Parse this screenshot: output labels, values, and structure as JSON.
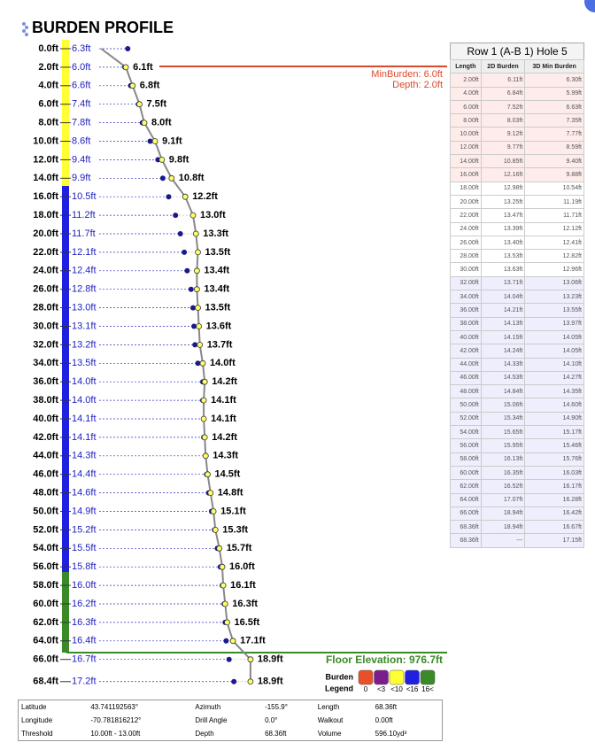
{
  "header": {
    "title": "BURDEN PROFILE"
  },
  "profile": {
    "depths": [
      0,
      2,
      4,
      6,
      8,
      10,
      12,
      14,
      16,
      18,
      20,
      22,
      24,
      26,
      28,
      30,
      32,
      34,
      36,
      38,
      40,
      42,
      44,
      46,
      48,
      50,
      52,
      54,
      56,
      58,
      60,
      62,
      64,
      66,
      68.4
    ],
    "depth_labels": [
      "0.0ft",
      "2.0ft",
      "4.0ft",
      "6.0ft",
      "8.0ft",
      "10.0ft",
      "12.0ft",
      "14.0ft",
      "16.0ft",
      "18.0ft",
      "20.0ft",
      "22.0ft",
      "24.0ft",
      "26.0ft",
      "28.0ft",
      "30.0ft",
      "32.0ft",
      "34.0ft",
      "36.0ft",
      "38.0ft",
      "40.0ft",
      "42.0ft",
      "44.0ft",
      "46.0ft",
      "48.0ft",
      "50.0ft",
      "52.0ft",
      "54.0ft",
      "56.0ft",
      "58.0ft",
      "60.0ft",
      "62.0ft",
      "64.0ft",
      "66.0ft",
      "68.4ft"
    ],
    "burden_3d": [
      6.3,
      6.0,
      6.6,
      7.4,
      7.8,
      8.6,
      9.4,
      9.9,
      10.5,
      11.2,
      11.7,
      12.1,
      12.4,
      12.8,
      13.0,
      13.1,
      13.2,
      13.5,
      14.0,
      14.0,
      14.1,
      14.1,
      14.3,
      14.4,
      14.6,
      14.9,
      15.2,
      15.5,
      15.8,
      16.0,
      16.2,
      16.3,
      16.4,
      16.7,
      17.2
    ],
    "burden_3d_labels": [
      "6.3ft",
      "6.0ft",
      "6.6ft",
      "7.4ft",
      "7.8ft",
      "8.6ft",
      "9.4ft",
      "9.9ft",
      "10.5ft",
      "11.2ft",
      "11.7ft",
      "12.1ft",
      "12.4ft",
      "12.8ft",
      "13.0ft",
      "13.1ft",
      "13.2ft",
      "13.5ft",
      "14.0ft",
      "14.0ft",
      "14.1ft",
      "14.1ft",
      "14.3ft",
      "14.4ft",
      "14.6ft",
      "14.9ft",
      "15.2ft",
      "15.5ft",
      "15.8ft",
      "16.0ft",
      "16.2ft",
      "16.3ft",
      "16.4ft",
      "16.7ft",
      "17.2ft"
    ],
    "burden_2d": [
      null,
      6.1,
      6.8,
      7.5,
      8.0,
      9.1,
      9.8,
      10.8,
      12.2,
      13.0,
      13.3,
      13.5,
      13.4,
      13.4,
      13.5,
      13.6,
      13.7,
      14.0,
      14.2,
      14.1,
      14.1,
      14.2,
      14.3,
      14.5,
      14.8,
      15.1,
      15.3,
      15.7,
      16.0,
      16.1,
      16.3,
      16.5,
      17.1,
      18.9,
      18.9
    ],
    "burden_2d_labels": [
      null,
      "6.1ft",
      "6.8ft",
      "7.5ft",
      "8.0ft",
      "9.1ft",
      "9.8ft",
      "10.8ft",
      "12.2ft",
      "13.0ft",
      "13.3ft",
      "13.5ft",
      "13.4ft",
      "13.4ft",
      "13.5ft",
      "13.6ft",
      "13.7ft",
      "14.0ft",
      "14.2ft",
      "14.1ft",
      "14.1ft",
      "14.2ft",
      "14.3ft",
      "14.5ft",
      "14.8ft",
      "15.1ft",
      "15.3ft",
      "15.7ft",
      "16.0ft",
      "16.1ft",
      "16.3ft",
      "16.5ft",
      "17.1ft",
      "18.9ft",
      "18.9ft"
    ],
    "min_burden": "MinBurden: 6.0ft",
    "min_depth": "Depth: 2.0ft",
    "floor": "Floor Elevation: 976.7ft"
  },
  "legend": {
    "title": [
      "Burden",
      "Legend"
    ],
    "items": [
      {
        "label": "0",
        "color": "#e8502a"
      },
      {
        "label": "<3",
        "color": "#7b1e8c"
      },
      {
        "label": "<10",
        "color": "#ffff33"
      },
      {
        "label": "<16",
        "color": "#2020e0"
      },
      {
        "label": "16<",
        "color": "#3a8a2a"
      }
    ]
  },
  "table": {
    "title": "Row 1 (A-B 1) Hole 5",
    "headers": [
      "Length",
      "2D Burden",
      "3D Min Burden"
    ],
    "rows": [
      [
        "2.00ft",
        "6.11ft",
        "6.30ft"
      ],
      [
        "4.00ft",
        "6.84ft",
        "5.99ft"
      ],
      [
        "6.00ft",
        "7.52ft",
        "6.63ft"
      ],
      [
        "8.00ft",
        "8.03ft",
        "7.35ft"
      ],
      [
        "10.00ft",
        "9.12ft",
        "7.77ft"
      ],
      [
        "12.00ft",
        "9.77ft",
        "8.59ft"
      ],
      [
        "14.00ft",
        "10.85ft",
        "9.40ft"
      ],
      [
        "16.00ft",
        "12.16ft",
        "9.88ft"
      ],
      [
        "18.00ft",
        "12.98ft",
        "10.54ft"
      ],
      [
        "20.00ft",
        "13.25ft",
        "11.19ft"
      ],
      [
        "22.00ft",
        "13.47ft",
        "11.71ft"
      ],
      [
        "24.00ft",
        "13.39ft",
        "12.12ft"
      ],
      [
        "26.00ft",
        "13.40ft",
        "12.41ft"
      ],
      [
        "28.00ft",
        "13.53ft",
        "12.82ft"
      ],
      [
        "30.00ft",
        "13.63ft",
        "12.96ft"
      ],
      [
        "32.00ft",
        "13.71ft",
        "13.06ft"
      ],
      [
        "34.00ft",
        "14.04ft",
        "13.23ft"
      ],
      [
        "36.00ft",
        "14.21ft",
        "13.55ft"
      ],
      [
        "38.00ft",
        "14.13ft",
        "13.97ft"
      ],
      [
        "40.00ft",
        "14.15ft",
        "14.05ft"
      ],
      [
        "42.00ft",
        "14.24ft",
        "14.05ft"
      ],
      [
        "44.00ft",
        "14.33ft",
        "14.10ft"
      ],
      [
        "46.00ft",
        "14.53ft",
        "14.27ft"
      ],
      [
        "48.00ft",
        "14.84ft",
        "14.35ft"
      ],
      [
        "50.00ft",
        "15.06ft",
        "14.60ft"
      ],
      [
        "52.00ft",
        "15.34ft",
        "14.90ft"
      ],
      [
        "54.00ft",
        "15.65ft",
        "15.17ft"
      ],
      [
        "56.00ft",
        "15.95ft",
        "15.46ft"
      ],
      [
        "58.00ft",
        "16.13ft",
        "15.76ft"
      ],
      [
        "60.00ft",
        "16.35ft",
        "16.03ft"
      ],
      [
        "62.00ft",
        "16.52ft",
        "16.17ft"
      ],
      [
        "64.00ft",
        "17.07ft",
        "16.28ft"
      ],
      [
        "66.00ft",
        "18.94ft",
        "16.42ft"
      ],
      [
        "68.36ft",
        "18.94ft",
        "16.67ft"
      ],
      [
        "68.36ft",
        "---",
        "17.15ft"
      ]
    ]
  },
  "info": {
    "rows": [
      [
        "Latitude",
        "43.741192563°",
        "Azimuth",
        "-155.9°",
        "Length",
        "68.36ft"
      ],
      [
        "Longitude",
        "-70.781816212°",
        "Drill Angle",
        "0.0°",
        "Walkout",
        "0.00ft"
      ],
      [
        "Threshold",
        "10.00ft - 13.00ft",
        "Depth",
        "68.36ft",
        "Volume",
        "596.10yd³"
      ]
    ]
  }
}
